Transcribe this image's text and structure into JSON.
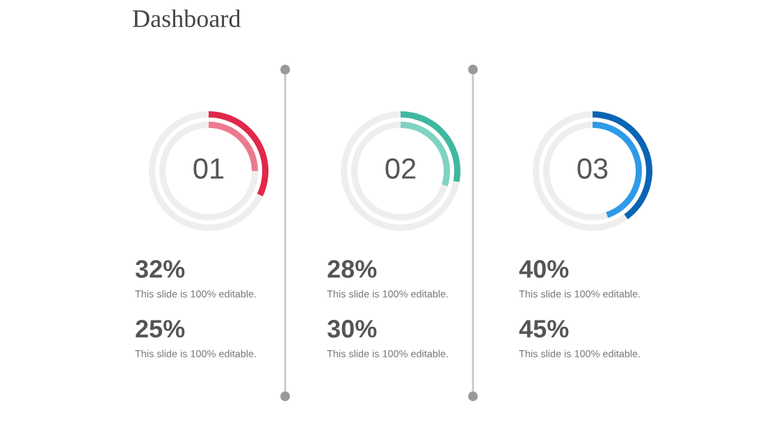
{
  "chart_data": [
    {
      "type": "donut",
      "title": "01",
      "annotations": [
        "Dashboard",
        "32%",
        "This slide is 100% editable.",
        "25%",
        "This slide is 100% editable."
      ],
      "series": [
        {
          "colors": [
            "#ec7a8e",
            "#eeeeee"
          ],
          "values": [
            25,
            75
          ]
        },
        {
          "colors": [
            "#e0284a",
            "#eeeeee"
          ],
          "values": [
            32,
            68
          ]
        }
      ]
    },
    {
      "type": "donut",
      "title": "02",
      "annotations": [
        "28%",
        "This slide is 100% editable.",
        "30%",
        "This slide is 100% editable."
      ],
      "series": [
        {
          "colors": [
            "#7fd3c2",
            "#eeeeee"
          ],
          "values": [
            30,
            70
          ]
        },
        {
          "colors": [
            "#3fb8a0",
            "#eeeeee"
          ],
          "values": [
            28,
            72
          ]
        }
      ]
    },
    {
      "type": "donut",
      "title": "03",
      "annotations": [
        "40%",
        "This slide is 100% editable.",
        "45%",
        "This slide is 100% editable."
      ],
      "series": [
        {
          "colors": [
            "#2e9ae8",
            "#eeeeee"
          ],
          "values": [
            45,
            55
          ]
        },
        {
          "colors": [
            "#0a64b4",
            "#eeeeee"
          ],
          "values": [
            40,
            60
          ]
        }
      ]
    }
  ]
}
